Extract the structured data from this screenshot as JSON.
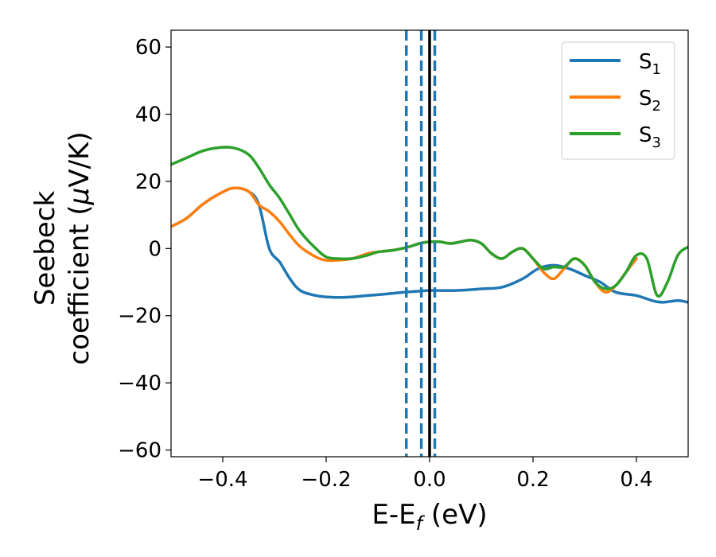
{
  "chart_data": {
    "type": "line",
    "xlabel": {
      "base": "E-E",
      "sub": "f",
      "suffix": " (eV)"
    },
    "ylabel": {
      "line1": "Seebeck",
      "line2_pre": "coefficient  (",
      "mu": "μ",
      "line2_post": "V/K)"
    },
    "xlim": [
      -0.5,
      0.5
    ],
    "ylim": [
      -62,
      65
    ],
    "xticks": [
      -0.4,
      -0.2,
      0.0,
      0.2,
      0.4
    ],
    "xtick_labels": [
      "−0.4",
      "−0.2",
      "0.0",
      "0.2",
      "0.4"
    ],
    "yticks": [
      -60,
      -40,
      -20,
      0,
      20,
      40,
      60
    ],
    "ytick_labels": [
      "−60",
      "−40",
      "−20",
      "0",
      "20",
      "40",
      "60"
    ],
    "grid": false,
    "legend_position": "top-right",
    "series": [
      {
        "name": "S1",
        "legend_base": "S",
        "legend_sub": "1",
        "color": "#1f77b4",
        "x": [
          -0.5,
          -0.47,
          -0.44,
          -0.41,
          -0.38,
          -0.35,
          -0.33,
          -0.31,
          -0.29,
          -0.27,
          -0.25,
          -0.22,
          -0.19,
          -0.16,
          -0.12,
          -0.08,
          -0.05,
          -0.02,
          0.0,
          0.05,
          0.1,
          0.14,
          0.18,
          0.21,
          0.24,
          0.27,
          0.3,
          0.33,
          0.36,
          0.4,
          0.43,
          0.45,
          0.48,
          0.5
        ],
        "y": [
          6.5,
          9,
          13,
          16,
          18,
          17,
          13,
          0,
          -4,
          -9,
          -12.5,
          -14,
          -14.5,
          -14.5,
          -14,
          -13.5,
          -13,
          -12.7,
          -12.5,
          -12.5,
          -12,
          -11.5,
          -9,
          -6,
          -5,
          -6,
          -8,
          -10,
          -13,
          -14,
          -15.5,
          -16,
          -15.5,
          -16
        ]
      },
      {
        "name": "S2",
        "legend_base": "S",
        "legend_sub": "2",
        "color": "#ff7f0e",
        "x": [
          -0.5,
          -0.47,
          -0.44,
          -0.41,
          -0.38,
          -0.35,
          -0.33,
          -0.31,
          -0.29,
          -0.27,
          -0.25,
          -0.22,
          -0.2,
          -0.18,
          -0.15,
          -0.12,
          -0.1,
          -0.07,
          -0.04,
          -0.02,
          0.0,
          0.02,
          0.04,
          0.06,
          0.08,
          0.1,
          0.12,
          0.14,
          0.16,
          0.18,
          0.2,
          0.22,
          0.24,
          0.26,
          0.28,
          0.3,
          0.32,
          0.34,
          0.36,
          0.38,
          0.4
        ],
        "y": [
          6.5,
          9,
          13,
          16,
          18,
          17,
          13,
          11,
          8,
          4,
          0.5,
          -2.5,
          -3.5,
          -3.5,
          -3,
          -1.5,
          -1,
          -0.5,
          0.5,
          1.5,
          2,
          2,
          1.5,
          2,
          2.5,
          1.5,
          -1.5,
          -3,
          -1,
          0,
          -3,
          -7,
          -9,
          -6,
          -3,
          -5,
          -10,
          -13,
          -11,
          -7,
          -3
        ]
      },
      {
        "name": "S3",
        "legend_base": "S",
        "legend_sub": "3",
        "color": "#2ca02c",
        "x": [
          -0.5,
          -0.47,
          -0.44,
          -0.41,
          -0.38,
          -0.35,
          -0.33,
          -0.31,
          -0.29,
          -0.27,
          -0.25,
          -0.22,
          -0.2,
          -0.18,
          -0.15,
          -0.12,
          -0.1,
          -0.07,
          -0.04,
          -0.02,
          0.0,
          0.02,
          0.04,
          0.06,
          0.08,
          0.1,
          0.12,
          0.14,
          0.16,
          0.18,
          0.2,
          0.22,
          0.24,
          0.26,
          0.28,
          0.3,
          0.32,
          0.34,
          0.36,
          0.38,
          0.4,
          0.42,
          0.44,
          0.46,
          0.48,
          0.5
        ],
        "y": [
          25,
          27,
          29,
          30,
          30,
          28,
          24,
          19,
          15,
          10,
          5,
          0,
          -2.5,
          -3,
          -3,
          -2,
          -1,
          -0.5,
          0.5,
          1.5,
          2,
          2,
          1.5,
          2,
          2.5,
          1.5,
          -1.5,
          -3,
          -1,
          0,
          -3,
          -6,
          -5.5,
          -5.5,
          -3,
          -5,
          -10,
          -12,
          -11,
          -7,
          -2,
          -3,
          -14,
          -10,
          -2,
          0.5
        ]
      }
    ],
    "vlines": [
      {
        "x": -0.045,
        "style": "dashed",
        "color": "#1f77b4"
      },
      {
        "x": -0.016,
        "style": "dashed",
        "color": "#1f77b4"
      },
      {
        "x": 0.01,
        "style": "dashed",
        "color": "#1f77b4"
      },
      {
        "x": 0.0,
        "style": "solid",
        "color": "#000000"
      }
    ]
  }
}
